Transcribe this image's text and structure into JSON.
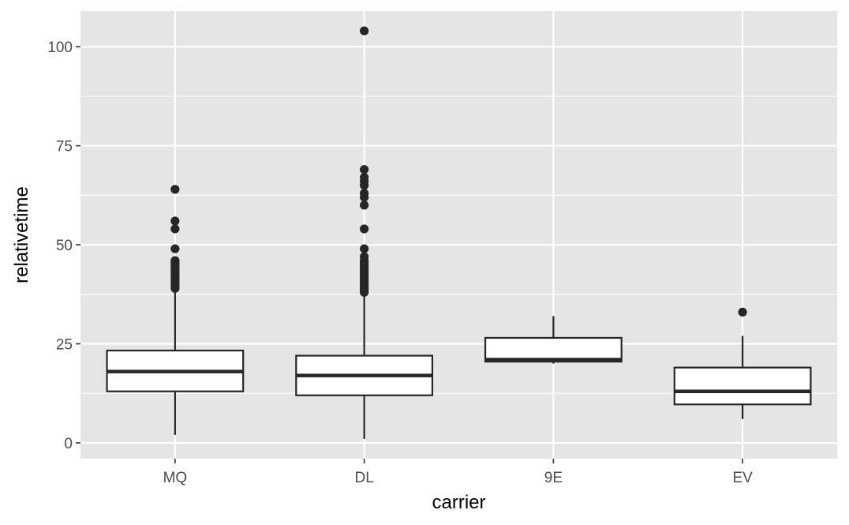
{
  "chart_data": {
    "type": "boxplot",
    "title": "",
    "xlabel": "carrier",
    "ylabel": "relativetime",
    "ylim": [
      -4,
      109
    ],
    "y_ticks": [
      0,
      25,
      50,
      75,
      100
    ],
    "y_tick_labels": [
      "0",
      "25",
      "50",
      "75",
      "100"
    ],
    "y_minor_ticks": [
      12.5,
      37.5,
      62.5,
      87.5
    ],
    "grid": true,
    "legend": "none",
    "colors": {
      "panel_background": "#e5e5e5",
      "grid_line": "#ffffff",
      "box_fill": "#ffffff",
      "box_stroke": "#262626",
      "outlier": "#262626",
      "tick_label": "#4d4d4d"
    },
    "categories": [
      "MQ",
      "DL",
      "9E",
      "EV"
    ],
    "boxes": [
      {
        "category": "MQ",
        "whisker_low": 2,
        "q1": 13,
        "median": 18,
        "q3": 23.3,
        "whisker_high": 39,
        "outliers": [
          39,
          39.5,
          40,
          40.5,
          41,
          41.5,
          42,
          42.5,
          43,
          43.5,
          44,
          44.5,
          45,
          45.5,
          46,
          49,
          54,
          56,
          64
        ]
      },
      {
        "category": "DL",
        "whisker_low": 1,
        "q1": 12,
        "median": 17,
        "q3": 22,
        "whisker_high": 37.5,
        "outliers": [
          38,
          38.5,
          39,
          39.5,
          40,
          40.5,
          41,
          41.5,
          42,
          42.5,
          43,
          43.5,
          44,
          44.5,
          45,
          45.5,
          46,
          47,
          49,
          54,
          60,
          62,
          63,
          65,
          66,
          67,
          69,
          104
        ]
      },
      {
        "category": "9E",
        "whisker_low": 20,
        "q1": 20.5,
        "median": 21,
        "q3": 26.5,
        "whisker_high": 32,
        "outliers": []
      },
      {
        "category": "EV",
        "whisker_low": 6,
        "q1": 9.7,
        "median": 13,
        "q3": 19,
        "whisker_high": 27,
        "outliers": [
          33
        ]
      }
    ]
  }
}
